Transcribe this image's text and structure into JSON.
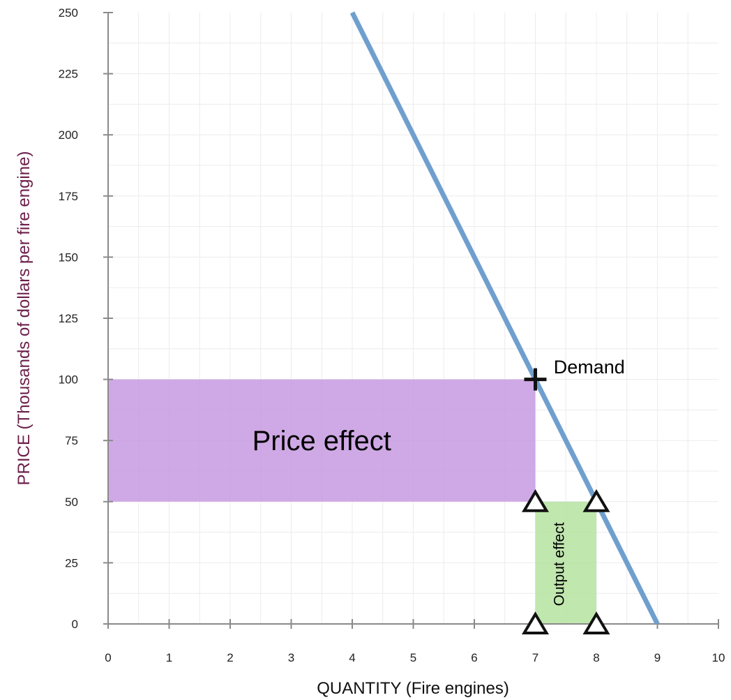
{
  "chart_data": {
    "type": "line",
    "xlabel": "QUANTITY (Fire engines)",
    "ylabel": "PRICE (Thousands of dollars per fire engine)",
    "xlim": [
      0,
      10
    ],
    "ylim": [
      0,
      250
    ],
    "x_ticks": [
      "0",
      "1",
      "2",
      "3",
      "4",
      "5",
      "6",
      "7",
      "8",
      "9",
      "10"
    ],
    "y_ticks": [
      "0",
      "25",
      "50",
      "75",
      "100",
      "125",
      "150",
      "175",
      "200",
      "225",
      "250"
    ],
    "grid": true,
    "series": [
      {
        "name": "Demand",
        "color": "#6f9fce",
        "x": [
          4,
          9
        ],
        "y": [
          250,
          0
        ]
      }
    ],
    "regions": [
      {
        "label": "Price effect",
        "color": "#c79ae0",
        "x": [
          0,
          7
        ],
        "y": [
          50,
          100
        ]
      },
      {
        "label": "Output effect",
        "color": "#b5e3a0",
        "x": [
          7,
          8
        ],
        "y": [
          0,
          50
        ]
      }
    ],
    "markers": [
      {
        "shape": "plus",
        "x": 7,
        "y": 100
      },
      {
        "shape": "triangle",
        "x": 7,
        "y": 50
      },
      {
        "shape": "triangle",
        "x": 8,
        "y": 50
      },
      {
        "shape": "triangle",
        "x": 7,
        "y": 0
      },
      {
        "shape": "triangle",
        "x": 8,
        "y": 0
      }
    ]
  }
}
